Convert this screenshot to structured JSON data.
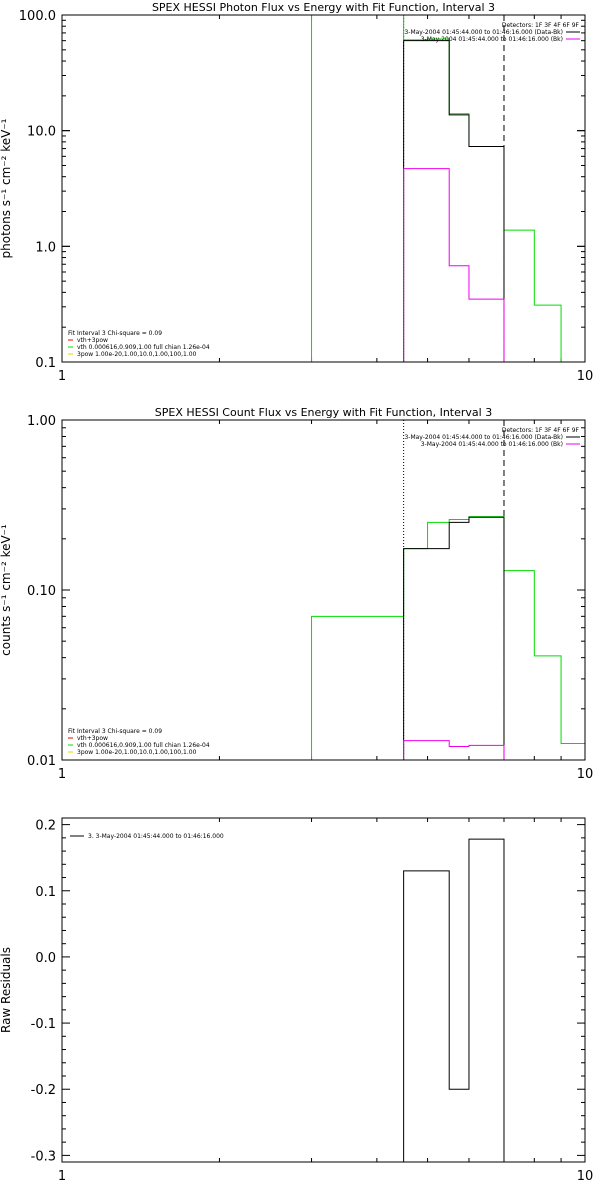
{
  "colors": {
    "axis": "#000000",
    "green": "#00dd00",
    "magenta": "#ee00ee",
    "black": "#000000",
    "red": "#ff0000",
    "yellow": "#dddd00"
  },
  "chart_data": [
    {
      "type": "line",
      "title": "SPEX HESSI Photon Flux vs Energy with Fit Function, Interval 3",
      "xscale": "log",
      "yscale": "log",
      "xlim": [
        1,
        10
      ],
      "ylim": [
        0.1,
        100
      ],
      "ylabel": "photons s⁻¹ cm⁻² keV⁻¹",
      "xticks": [
        {
          "v": 1,
          "label": "1"
        },
        {
          "v": 10,
          "label": "10"
        }
      ],
      "yticks": [
        {
          "v": 0.1,
          "label": "0.1"
        },
        {
          "v": 1,
          "label": "1.0"
        },
        {
          "v": 10,
          "label": "10.0"
        },
        {
          "v": 100,
          "label": "100.0"
        }
      ],
      "legend_top": [
        {
          "text": "Detectors: 1F 3F 4F 6F 9F",
          "color": "#000000",
          "swatch": false
        },
        {
          "text": "3-May-2004 01:45:44.000 to 01:46:16.000 (Data-Bk)",
          "color": "#000000",
          "swatch": true
        },
        {
          "text": "3-May-2004 01:45:44.000 to 01:46:16.000 (Bk)",
          "color": "#ee00ee",
          "swatch": true
        }
      ],
      "legend_bottom": [
        {
          "text": "Fit Interval 3   Chi-square = 0.09",
          "color": "#000000",
          "swatch": false
        },
        {
          "text": "vth+3pow",
          "color": "#ff0000",
          "swatch": true
        },
        {
          "text": "vth 0.000616,0.909,1.00  full chian 1.26e-04",
          "color": "#00dd00",
          "swatch": true
        },
        {
          "text": "3pow 1.00e-20,1.00,10.0,1.00,100,1.00",
          "color": "#dddd00",
          "swatch": true
        }
      ],
      "vlines": [
        {
          "x": 4.5,
          "style": "dotted"
        },
        {
          "x": 7.0,
          "style": "dashed"
        }
      ],
      "series": [
        {
          "color": "#00dd00",
          "edges": [
            3.0,
            4.5,
            5.0,
            5.5,
            6.0,
            7.0,
            8.0,
            9.0
          ],
          "values": [
            100,
            61,
            62,
            14,
            7.3,
            1.38,
            0.31
          ],
          "from_floor": true
        },
        {
          "color": "#000000",
          "edges": [
            4.5,
            5.0,
            5.5,
            6.0,
            7.0
          ],
          "values": [
            60,
            60,
            13.7,
            7.3
          ],
          "from_floor": true
        },
        {
          "color": "#ee00ee",
          "edges": [
            4.5,
            5.0,
            5.5,
            6.0,
            7.0
          ],
          "values": [
            4.7,
            4.7,
            0.68,
            0.35
          ],
          "from_floor": true
        }
      ]
    },
    {
      "type": "line",
      "title": "SPEX HESSI Count Flux vs Energy with Fit Function, Interval 3",
      "xscale": "log",
      "yscale": "log",
      "xlim": [
        1,
        10
      ],
      "ylim": [
        0.01,
        1.0
      ],
      "ylabel": "counts s⁻¹ cm⁻² keV⁻¹",
      "xticks": [
        {
          "v": 1,
          "label": "1"
        },
        {
          "v": 10,
          "label": "10"
        }
      ],
      "yticks": [
        {
          "v": 0.01,
          "label": "0.01"
        },
        {
          "v": 0.1,
          "label": "0.10"
        },
        {
          "v": 1,
          "label": "1.00"
        }
      ],
      "legend_top": [
        {
          "text": "Detectors: 1F 3F 4F 6F 9F",
          "color": "#000000",
          "swatch": false
        },
        {
          "text": "3-May-2004 01:45:44.000 to 01:46:16.000 (Data-Bk)",
          "color": "#000000",
          "swatch": true
        },
        {
          "text": "3-May-2004 01:45:44.000 to 01:46:16.000 (Bk)",
          "color": "#ee00ee",
          "swatch": true
        }
      ],
      "legend_bottom": [
        {
          "text": "Fit Interval 3   Chi-square = 0.09",
          "color": "#000000",
          "swatch": false
        },
        {
          "text": "vth+3pow",
          "color": "#ff0000",
          "swatch": true
        },
        {
          "text": "vth 0.000616,0.909,1.00  full chian 1.26e-04",
          "color": "#00dd00",
          "swatch": true
        },
        {
          "text": "3pow 1.00e-20,1.00,10.0,1.00,100,1.00",
          "color": "#dddd00",
          "swatch": true
        }
      ],
      "vlines": [
        {
          "x": 4.5,
          "style": "dotted"
        },
        {
          "x": 7.0,
          "style": "dashed"
        }
      ],
      "series": [
        {
          "color": "#00dd00",
          "edges": [
            3.0,
            4.5,
            5.0,
            5.5,
            6.0,
            7.0,
            8.0,
            9.0,
            10.0
          ],
          "values": [
            0.07,
            0.175,
            0.25,
            0.26,
            0.27,
            0.13,
            0.041,
            0.0125
          ],
          "from_floor": true
        },
        {
          "color": "#000000",
          "edges": [
            4.5,
            5.0,
            5.5,
            6.0,
            7.0
          ],
          "values": [
            0.175,
            0.175,
            0.25,
            0.268
          ],
          "from_floor": true
        },
        {
          "color": "#ee00ee",
          "edges": [
            4.5,
            5.0,
            5.5,
            6.0,
            7.0
          ],
          "values": [
            0.013,
            0.013,
            0.012,
            0.0122
          ],
          "from_floor": true
        }
      ]
    },
    {
      "type": "line",
      "title": "",
      "xscale": "log",
      "yscale": "linear",
      "xlim": [
        1,
        10
      ],
      "ylim": [
        -0.31,
        0.21
      ],
      "ylabel": "Raw Residuals",
      "xticks": [
        {
          "v": 1,
          "label": "1"
        },
        {
          "v": 10,
          "label": "10"
        }
      ],
      "yticks": [
        {
          "v": 0.2,
          "label": "0.2"
        },
        {
          "v": 0.1,
          "label": "0.1"
        },
        {
          "v": 0.0,
          "label": "0.0"
        },
        {
          "v": -0.1,
          "label": "-0.1"
        },
        {
          "v": -0.2,
          "label": "-0.2"
        },
        {
          "v": -0.3,
          "label": "-0.3"
        }
      ],
      "legend_top": [
        {
          "text": "3. 3-May-2004 01:45:44.000 to 01:46:16.000",
          "color": "#000000",
          "swatch": true
        }
      ],
      "legend_bottom": [],
      "vlines": [],
      "series": [
        {
          "color": "#000000",
          "edges": [
            4.5,
            5.0,
            5.5,
            6.0,
            7.0
          ],
          "values": [
            0.13,
            0.13,
            -0.2,
            0.178
          ],
          "from_floor": true
        }
      ]
    }
  ]
}
